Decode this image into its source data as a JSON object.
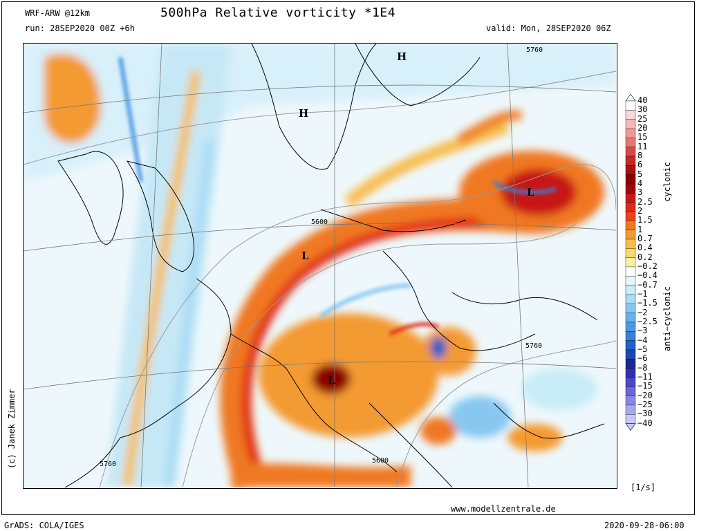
{
  "header": {
    "model": "WRF-ARW @12km",
    "run": "run: 28SEP2020 00Z +6h",
    "title": "500hPa Relative vorticity *1E4",
    "valid": "valid: Mon, 28SEP2020 06Z"
  },
  "map": {
    "contours": [
      {
        "label": "5760"
      },
      {
        "label": "5600"
      },
      {
        "label": "5760"
      },
      {
        "label": "5600"
      },
      {
        "label": "5760"
      },
      {
        "label": "5600"
      }
    ],
    "pressure_centers": [
      "H",
      "H",
      "L",
      "L",
      "L"
    ]
  },
  "colorbar": {
    "levels": [
      "40",
      "30",
      "25",
      "20",
      "15",
      "11",
      "8",
      "6",
      "5",
      "4",
      "3",
      "2.5",
      "2",
      "1.5",
      "1",
      "0.7",
      "0.4",
      "0.2",
      "−0.2",
      "−0.4",
      "−0.7",
      "−1",
      "−1.5",
      "−2",
      "−2.5",
      "−3",
      "−4",
      "−5",
      "−6",
      "−8",
      "−11",
      "−15",
      "−20",
      "−25",
      "−30",
      "−40"
    ],
    "colors": [
      "#ffffff",
      "#f9d8d8",
      "#f4b8b8",
      "#ee9898",
      "#e87474",
      "#d84848",
      "#c42828",
      "#aa1010",
      "#8c0000",
      "#a00808",
      "#c81818",
      "#e02818",
      "#f04018",
      "#f07820",
      "#f49a30",
      "#f8bc48",
      "#fcd870",
      "#fef0a0",
      "#ffffff",
      "#e8f6fc",
      "#c8ecf8",
      "#a8dcf4",
      "#88c8f0",
      "#68b0ea",
      "#4c98e4",
      "#3680da",
      "#2060c8",
      "#1848b0",
      "#1a2890",
      "#3030b0",
      "#4848c8",
      "#6868d8",
      "#8888e4",
      "#a8a8ee",
      "#c8c8f6"
    ],
    "unit": "[1/s]",
    "cyclonic": "cyclonic",
    "anticyclonic": "anti−cyclonic"
  },
  "footer": {
    "credit": "(c) Janek Zimmer",
    "website": "www.modellzentrale.de",
    "grads": "GrADS: COLA/IGES",
    "timestamp": "2020-09-28-06:00"
  }
}
